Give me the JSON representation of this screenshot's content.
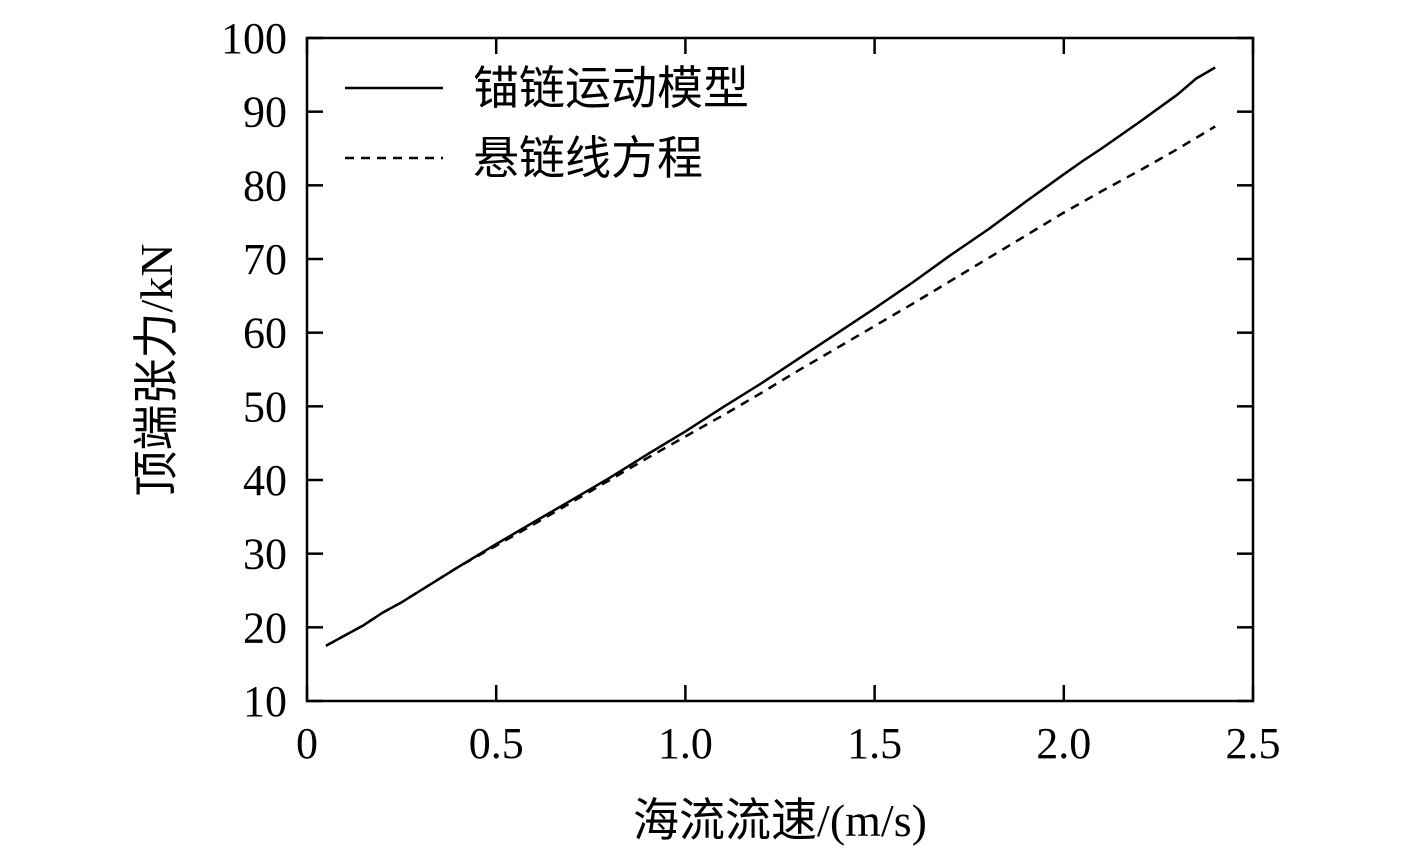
{
  "chart_data": {
    "type": "line",
    "title": "",
    "xlabel": "海流流速/(m/s)",
    "ylabel": "顶端张力/kN",
    "xlim": [
      0,
      2.5
    ],
    "ylim": [
      10,
      100
    ],
    "xticks": [
      0,
      0.5,
      1.0,
      1.5,
      2.0,
      2.5
    ],
    "xtick_labels": [
      "0",
      "0.5",
      "1.0",
      "1.5",
      "2.0",
      "2.5"
    ],
    "yticks": [
      10,
      20,
      30,
      40,
      50,
      60,
      70,
      80,
      90,
      100
    ],
    "ytick_labels": [
      "10",
      "20",
      "30",
      "40",
      "50",
      "60",
      "70",
      "80",
      "90",
      "100"
    ],
    "grid": false,
    "legend_position": "top-left",
    "series": [
      {
        "name": "锚链运动模型",
        "line_style": "solid",
        "x": [
          0.05,
          0.15,
          0.2,
          0.25,
          0.3,
          0.4,
          0.5,
          0.6,
          0.7,
          0.8,
          0.9,
          1.0,
          1.1,
          1.2,
          1.3,
          1.4,
          1.5,
          1.6,
          1.7,
          1.8,
          1.9,
          2.0,
          2.05,
          2.1,
          2.2,
          2.3,
          2.35,
          2.4
        ],
        "y": [
          17.5,
          20.3,
          22.0,
          23.4,
          25.0,
          28.2,
          31.3,
          34.3,
          37.3,
          40.3,
          43.5,
          46.6,
          49.9,
          53.1,
          56.5,
          59.9,
          63.3,
          66.8,
          70.5,
          74.0,
          77.8,
          81.5,
          83.3,
          85.0,
          88.6,
          92.3,
          94.5,
          96.0
        ]
      },
      {
        "name": "悬链线方程",
        "line_style": "dashed",
        "x": [
          0.05,
          0.15,
          0.2,
          0.25,
          0.3,
          0.4,
          0.5,
          0.6,
          0.7,
          0.8,
          0.9,
          1.0,
          1.1,
          1.2,
          1.3,
          1.4,
          1.5,
          1.6,
          1.7,
          1.8,
          1.9,
          2.0,
          2.1,
          2.2,
          2.3,
          2.4
        ],
        "y": [
          17.5,
          20.3,
          22.0,
          23.4,
          25.0,
          28.2,
          31.1,
          34.0,
          37.0,
          40.0,
          43.0,
          45.9,
          48.8,
          51.8,
          54.9,
          57.9,
          60.9,
          63.9,
          67.0,
          70.1,
          73.2,
          76.3,
          79.2,
          82.0,
          84.9,
          88.0
        ]
      }
    ]
  }
}
